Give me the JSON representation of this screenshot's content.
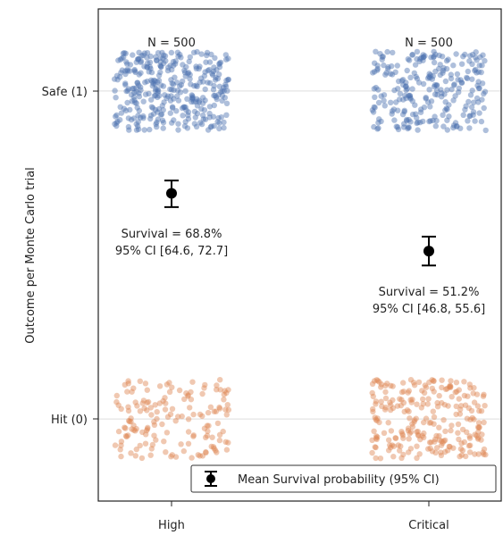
{
  "chart_data": {
    "type": "scatter",
    "ylabel": "Outcome per Monte Carlo trial",
    "xlabel": "",
    "categories": [
      "High",
      "Critical"
    ],
    "y_ticks": [
      {
        "value": 1,
        "label": "Safe (1)"
      },
      {
        "value": 0,
        "label": "Hit (0)"
      }
    ],
    "ylim": [
      -0.25,
      1.25
    ],
    "grid": "horizontal at ticks",
    "legend_position": "bottom-right",
    "legend_label": "Mean Survival probability (95% CI)",
    "colors": {
      "safe": "#4c72b0",
      "hit": "#dd8452",
      "mean": "#000000"
    },
    "groups": [
      {
        "category": "High",
        "n_label": "N = 500",
        "safe_count": 344,
        "hit_count": 156,
        "mean": 0.688,
        "ci_low": 0.646,
        "ci_high": 0.727,
        "annotation_line1": "Survival = 68.8%",
        "annotation_line2": "95% CI [64.6, 72.7]"
      },
      {
        "category": "Critical",
        "n_label": "N = 500",
        "safe_count": 256,
        "hit_count": 244,
        "mean": 0.512,
        "ci_low": 0.468,
        "ci_high": 0.556,
        "annotation_line1": "Survival = 51.2%",
        "annotation_line2": "95% CI [46.8, 55.6]"
      }
    ]
  }
}
